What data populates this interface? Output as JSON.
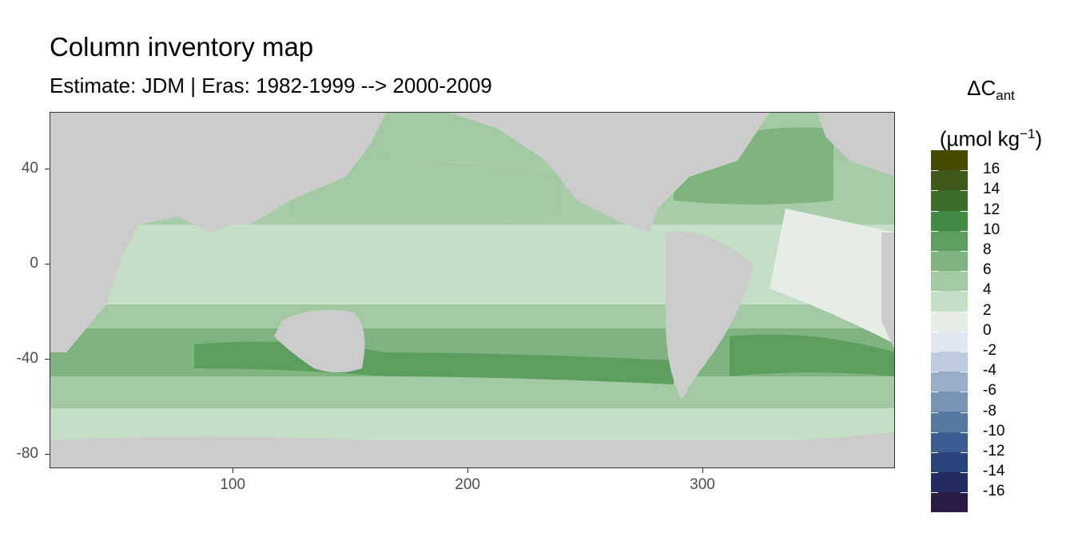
{
  "header": {
    "title": "Column inventory map",
    "subtitle": "Estimate: JDM  | Eras: 1982-1999 --> 2000-2009"
  },
  "map": {
    "x_range": [
      22,
      382
    ],
    "y_range": [
      -86,
      64
    ],
    "x_ticks": [
      {
        "value": 100,
        "label": "100"
      },
      {
        "value": 200,
        "label": "200"
      },
      {
        "value": 300,
        "label": "300"
      }
    ],
    "y_ticks": [
      {
        "value": 40,
        "label": "40"
      },
      {
        "value": 0,
        "label": "0"
      },
      {
        "value": -40,
        "label": "-40"
      },
      {
        "value": -80,
        "label": "-80"
      }
    ],
    "land_color": "#cccccc",
    "panel_border_color": "#333333"
  },
  "legend": {
    "title_symbol": "ΔC",
    "title_subscript": "ant",
    "unit_prefix": "(µmol kg",
    "unit_superscript": "−1",
    "unit_suffix": ")",
    "bins": [
      {
        "color": "#474a00"
      },
      {
        "color": "#3e5a1a"
      },
      {
        "color": "#3a6d2a"
      },
      {
        "color": "#438a45"
      },
      {
        "color": "#5c9e5e"
      },
      {
        "color": "#7fb37f"
      },
      {
        "color": "#a2c9a2"
      },
      {
        "color": "#c5dec6"
      },
      {
        "color": "#e5ede6"
      },
      {
        "color": "#dfe6ef"
      },
      {
        "color": "#bccbdd"
      },
      {
        "color": "#99afc9"
      },
      {
        "color": "#7794b6"
      },
      {
        "color": "#5579a0"
      },
      {
        "color": "#3a5e90"
      },
      {
        "color": "#28447a"
      },
      {
        "color": "#242b5e"
      },
      {
        "color": "#2b1a48"
      }
    ],
    "labels": [
      "16",
      "14",
      "12",
      "10",
      "8",
      "6",
      "4",
      "2",
      "0",
      "-2",
      "-4",
      "-6",
      "-8",
      "-10",
      "-12",
      "-14",
      "-16"
    ]
  }
}
